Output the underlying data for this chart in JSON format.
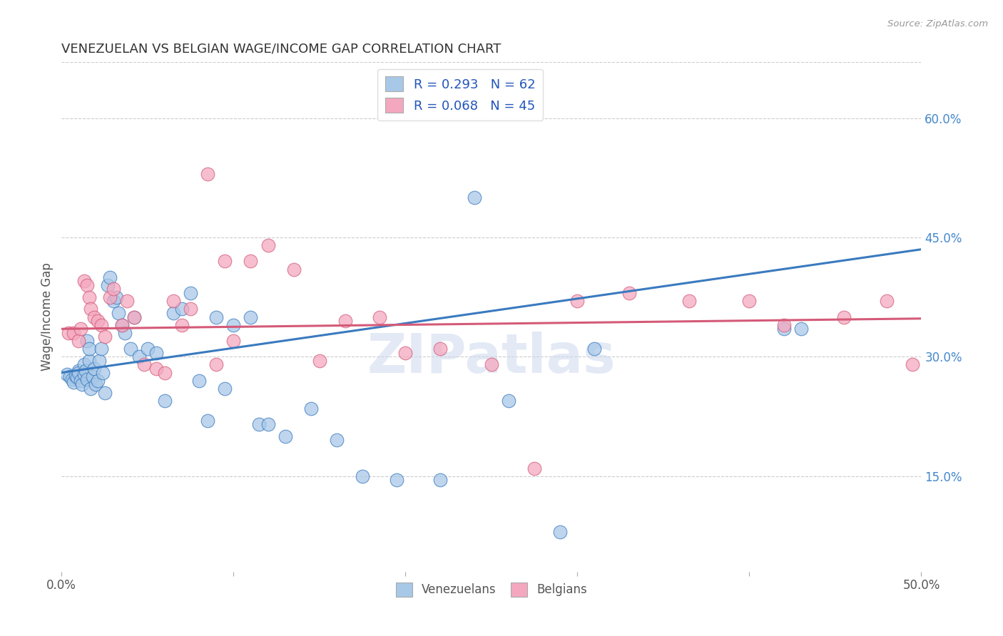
{
  "title": "VENEZUELAN VS BELGIAN WAGE/INCOME GAP CORRELATION CHART",
  "source": "Source: ZipAtlas.com",
  "ylabel": "Wage/Income Gap",
  "xlim": [
    0.0,
    0.5
  ],
  "ylim": [
    0.03,
    0.67
  ],
  "xtick_positions": [
    0.0,
    0.1,
    0.2,
    0.3,
    0.4,
    0.5
  ],
  "xticklabels": [
    "0.0%",
    "",
    "",
    "",
    "",
    "50.0%"
  ],
  "yticks_right": [
    0.15,
    0.3,
    0.45,
    0.6
  ],
  "ytick_right_labels": [
    "15.0%",
    "30.0%",
    "45.0%",
    "60.0%"
  ],
  "blue_color": "#a8c8e8",
  "pink_color": "#f4a8c0",
  "blue_line_color": "#3a7abf",
  "pink_line_color": "#d45a78",
  "R_blue": 0.293,
  "N_blue": 62,
  "R_pink": 0.068,
  "N_pink": 45,
  "watermark": "ZIPatlas",
  "blue_x": [
    0.003,
    0.005,
    0.006,
    0.007,
    0.008,
    0.009,
    0.01,
    0.01,
    0.011,
    0.012,
    0.013,
    0.013,
    0.014,
    0.015,
    0.015,
    0.016,
    0.016,
    0.017,
    0.018,
    0.019,
    0.02,
    0.021,
    0.022,
    0.023,
    0.024,
    0.025,
    0.027,
    0.028,
    0.03,
    0.032,
    0.033,
    0.035,
    0.037,
    0.04,
    0.042,
    0.045,
    0.05,
    0.055,
    0.06,
    0.065,
    0.07,
    0.075,
    0.08,
    0.085,
    0.09,
    0.095,
    0.1,
    0.11,
    0.115,
    0.12,
    0.13,
    0.145,
    0.16,
    0.175,
    0.195,
    0.22,
    0.24,
    0.26,
    0.29,
    0.31,
    0.42,
    0.43
  ],
  "blue_y": [
    0.278,
    0.275,
    0.272,
    0.268,
    0.276,
    0.274,
    0.282,
    0.28,
    0.27,
    0.265,
    0.29,
    0.278,
    0.282,
    0.272,
    0.32,
    0.295,
    0.31,
    0.26,
    0.275,
    0.285,
    0.265,
    0.27,
    0.295,
    0.31,
    0.28,
    0.255,
    0.39,
    0.4,
    0.37,
    0.375,
    0.355,
    0.34,
    0.33,
    0.31,
    0.35,
    0.3,
    0.31,
    0.305,
    0.245,
    0.355,
    0.36,
    0.38,
    0.27,
    0.22,
    0.35,
    0.26,
    0.34,
    0.35,
    0.215,
    0.215,
    0.2,
    0.235,
    0.195,
    0.15,
    0.145,
    0.145,
    0.5,
    0.245,
    0.08,
    0.31,
    0.335,
    0.335
  ],
  "pink_x": [
    0.004,
    0.007,
    0.01,
    0.011,
    0.013,
    0.015,
    0.016,
    0.017,
    0.019,
    0.021,
    0.023,
    0.025,
    0.028,
    0.03,
    0.035,
    0.038,
    0.042,
    0.048,
    0.055,
    0.06,
    0.065,
    0.07,
    0.075,
    0.085,
    0.09,
    0.095,
    0.1,
    0.11,
    0.12,
    0.135,
    0.15,
    0.165,
    0.185,
    0.2,
    0.22,
    0.25,
    0.275,
    0.3,
    0.33,
    0.365,
    0.4,
    0.42,
    0.455,
    0.48,
    0.495
  ],
  "pink_y": [
    0.33,
    0.33,
    0.32,
    0.335,
    0.395,
    0.39,
    0.375,
    0.36,
    0.35,
    0.345,
    0.34,
    0.325,
    0.375,
    0.385,
    0.34,
    0.37,
    0.35,
    0.29,
    0.285,
    0.28,
    0.37,
    0.34,
    0.36,
    0.53,
    0.29,
    0.42,
    0.32,
    0.42,
    0.44,
    0.41,
    0.295,
    0.345,
    0.35,
    0.305,
    0.31,
    0.29,
    0.16,
    0.37,
    0.38,
    0.37,
    0.37,
    0.34,
    0.35,
    0.37,
    0.29
  ]
}
